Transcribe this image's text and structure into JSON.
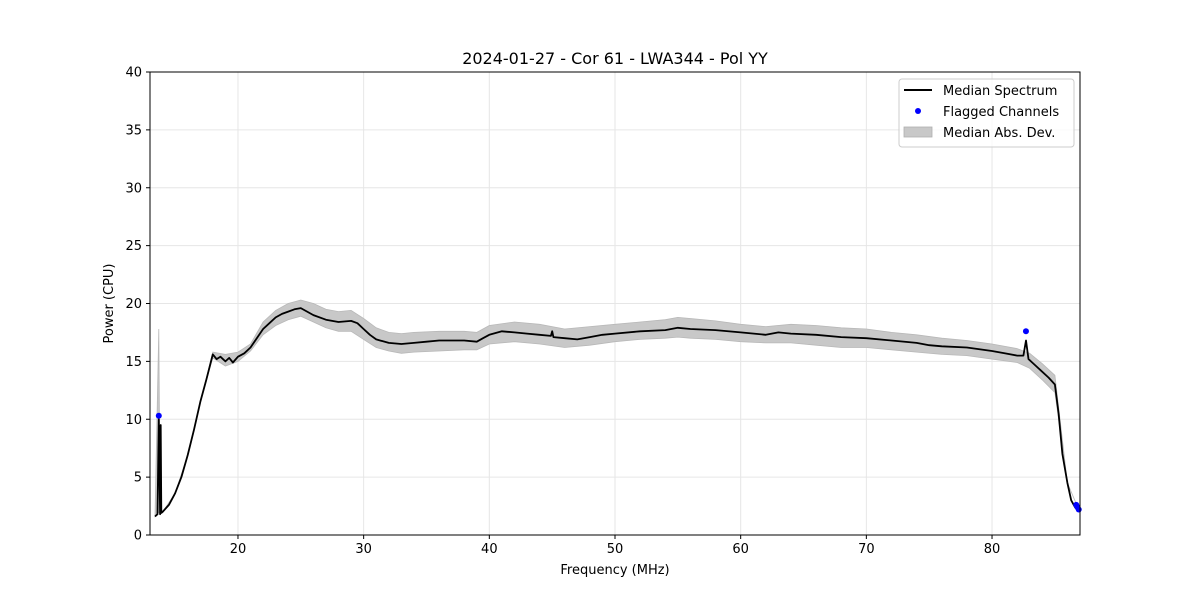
{
  "chart_data": {
    "type": "line",
    "title": "2024-01-27 - Cor 61 - LWA344 - Pol YY",
    "xlabel": "Frequency (MHz)",
    "ylabel": "Power (CPU)",
    "xlim": [
      13,
      87
    ],
    "ylim": [
      0,
      40
    ],
    "xticks": [
      20,
      30,
      40,
      50,
      60,
      70,
      80
    ],
    "yticks": [
      0,
      5,
      10,
      15,
      20,
      25,
      30,
      35,
      40
    ],
    "grid": true,
    "legend_position": "top-right",
    "colors": {
      "median_line": "#000000",
      "flagged_points": "#0000ff",
      "mad_band": "#c8c8c8"
    },
    "series": [
      {
        "name": "Median Spectrum",
        "kind": "line",
        "x": [
          13.4,
          13.6,
          13.7,
          13.8,
          13.85,
          13.9,
          14.0,
          14.5,
          15.0,
          15.5,
          16.0,
          16.5,
          17.0,
          17.5,
          18.0,
          18.3,
          18.6,
          19.0,
          19.3,
          19.6,
          20.0,
          20.5,
          21.0,
          21.5,
          22.0,
          22.5,
          23.0,
          23.5,
          24.0,
          24.5,
          25.0,
          25.5,
          26.0,
          27.0,
          28.0,
          29.0,
          29.5,
          30.0,
          30.5,
          31.0,
          32.0,
          33.0,
          34.0,
          35.0,
          36.0,
          37.0,
          38.0,
          39.0,
          39.5,
          40.0,
          41.0,
          42.0,
          43.0,
          44.0,
          44.9,
          45.0,
          45.1,
          46.0,
          47.0,
          48.0,
          49.0,
          50.0,
          52.0,
          54.0,
          55.0,
          56.0,
          58.0,
          60.0,
          62.0,
          63.0,
          64.0,
          66.0,
          68.0,
          70.0,
          72.0,
          74.0,
          75.0,
          76.0,
          78.0,
          80.0,
          81.0,
          82.0,
          82.5,
          82.7,
          82.9,
          83.2,
          83.5,
          84.0,
          84.5,
          85.0,
          85.3,
          85.6,
          86.0,
          86.3,
          86.6,
          86.9
        ],
        "values": [
          1.6,
          1.8,
          10.0,
          1.8,
          9.5,
          1.9,
          2.0,
          2.6,
          3.6,
          5.0,
          6.9,
          9.1,
          11.5,
          13.5,
          15.6,
          15.2,
          15.4,
          15.0,
          15.3,
          14.9,
          15.4,
          15.7,
          16.2,
          17.0,
          17.8,
          18.3,
          18.8,
          19.1,
          19.3,
          19.5,
          19.6,
          19.3,
          19.0,
          18.6,
          18.4,
          18.5,
          18.3,
          17.8,
          17.3,
          16.9,
          16.6,
          16.5,
          16.6,
          16.7,
          16.8,
          16.8,
          16.8,
          16.7,
          17.0,
          17.3,
          17.6,
          17.5,
          17.4,
          17.3,
          17.2,
          17.6,
          17.1,
          17.0,
          16.9,
          17.1,
          17.3,
          17.4,
          17.6,
          17.7,
          17.9,
          17.8,
          17.7,
          17.5,
          17.3,
          17.5,
          17.4,
          17.3,
          17.1,
          17.0,
          16.8,
          16.6,
          16.4,
          16.3,
          16.2,
          15.9,
          15.7,
          15.5,
          15.5,
          16.8,
          15.2,
          14.9,
          14.6,
          14.1,
          13.6,
          13.0,
          10.5,
          7.0,
          4.5,
          3.0,
          2.4,
          2.2
        ]
      },
      {
        "name": "Flagged Channels",
        "kind": "scatter",
        "x": [
          13.7,
          82.7,
          86.7,
          86.8,
          86.9
        ],
        "values": [
          10.3,
          17.6,
          2.6,
          2.4,
          2.2
        ]
      },
      {
        "name": "Median Abs. Dev.",
        "kind": "band",
        "x": [
          13.4,
          13.7,
          13.8,
          14.0,
          15.0,
          16.0,
          17.0,
          18.0,
          19.0,
          20.0,
          21.0,
          22.0,
          23.0,
          24.0,
          25.0,
          26.0,
          27.0,
          28.0,
          29.0,
          30.0,
          31.0,
          32.0,
          33.0,
          34.0,
          36.0,
          38.0,
          39.0,
          40.0,
          42.0,
          44.0,
          46.0,
          48.0,
          50.0,
          52.0,
          54.0,
          55.0,
          56.0,
          58.0,
          60.0,
          62.0,
          64.0,
          66.0,
          68.0,
          70.0,
          72.0,
          74.0,
          76.0,
          78.0,
          80.0,
          82.0,
          83.0,
          84.0,
          85.0,
          86.0,
          86.9
        ],
        "lower": [
          1.6,
          2.0,
          1.8,
          2.0,
          3.6,
          6.9,
          11.5,
          15.3,
          14.6,
          15.0,
          15.9,
          17.3,
          18.1,
          18.6,
          18.9,
          18.4,
          17.9,
          17.6,
          17.6,
          16.9,
          16.2,
          15.9,
          15.7,
          15.8,
          15.9,
          16.0,
          16.0,
          16.5,
          16.7,
          16.5,
          16.2,
          16.4,
          16.7,
          16.9,
          17.0,
          17.1,
          17.0,
          16.9,
          16.7,
          16.6,
          16.6,
          16.4,
          16.2,
          16.2,
          16.0,
          15.8,
          15.6,
          15.5,
          15.2,
          14.9,
          14.4,
          13.4,
          12.3,
          4.5,
          2.2
        ],
        "upper": [
          1.6,
          17.8,
          1.8,
          2.0,
          3.6,
          6.9,
          11.5,
          15.8,
          15.6,
          15.8,
          16.5,
          18.4,
          19.4,
          20.0,
          20.3,
          20.0,
          19.5,
          19.3,
          19.4,
          18.7,
          17.9,
          17.5,
          17.4,
          17.5,
          17.6,
          17.6,
          17.5,
          18.1,
          18.4,
          18.2,
          17.8,
          18.0,
          18.2,
          18.4,
          18.6,
          18.8,
          18.7,
          18.5,
          18.2,
          18.0,
          18.2,
          18.1,
          17.9,
          17.8,
          17.5,
          17.3,
          17.0,
          16.8,
          16.5,
          16.1,
          15.7,
          14.8,
          13.8,
          4.5,
          2.2
        ]
      }
    ]
  }
}
